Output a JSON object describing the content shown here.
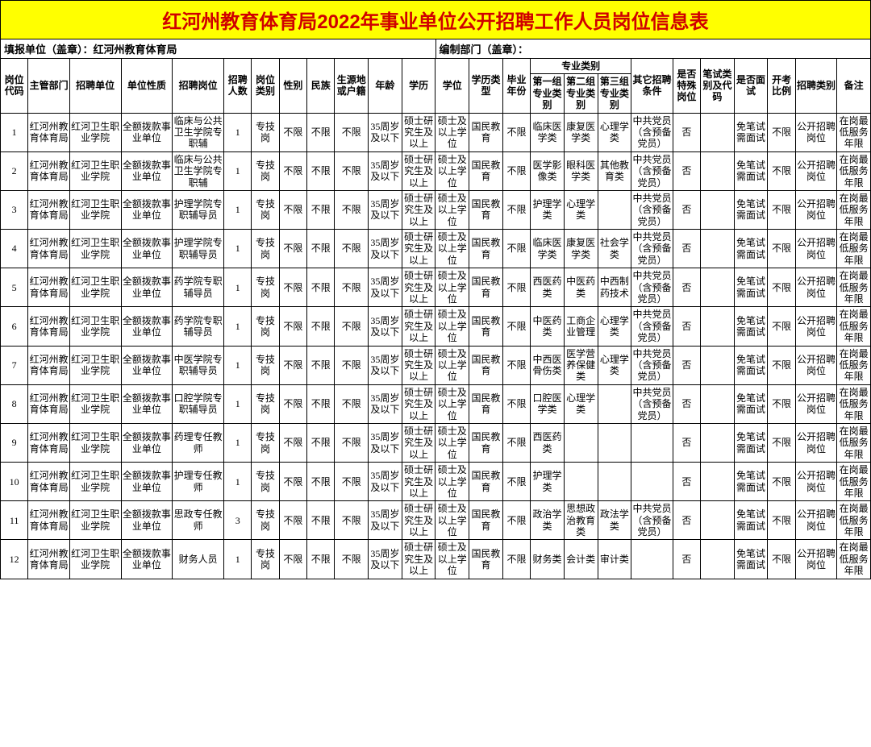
{
  "title": "红河州教育体育局2022年事业单位公开招聘工作人员岗位信息表",
  "meta_left": "填报单位（盖章）：红河州教育体育局",
  "meta_right": "编制部门（盖章）：",
  "header_group": "专业类别",
  "headers": {
    "c1": "岗位代码",
    "c2": "主管部门",
    "c3": "招聘单位",
    "c4": "单位性质",
    "c5": "招聘岗位",
    "c6": "招聘人数",
    "c7": "岗位类别",
    "c8": "性别",
    "c9": "民族",
    "c10": "生源地或户籍",
    "c11": "年龄",
    "c12": "学历",
    "c13": "学位",
    "c14": "学历类型",
    "c15": "毕业年份",
    "c16": "第一组专业类别",
    "c17": "第二组专业类别",
    "c18": "第三组专业类别",
    "c19": "其它招聘条件",
    "c20": "是否特殊岗位",
    "c21": "笔试类别及代码",
    "c22": "是否面试",
    "c23": "开考比例",
    "c24": "招聘类别",
    "c25": "备注"
  },
  "rows": [
    {
      "c1": "1",
      "c2": "红河州教育体育局",
      "c3": "红河卫生职业学院",
      "c4": "全额拨款事业单位",
      "c5": "临床与公共卫生学院专职辅",
      "c6": "1",
      "c7": "专技岗",
      "c8": "不限",
      "c9": "不限",
      "c10": "不限",
      "c11": "35周岁及以下",
      "c12": "硕士研究生及以上",
      "c13": "硕士及以上学位",
      "c14": "国民教育",
      "c15": "不限",
      "c16": "临床医学类",
      "c17": "康复医学类",
      "c18": "心理学类",
      "c19": "中共党员（含预备党员）",
      "c20": "否",
      "c21": "",
      "c22": "免笔试需面试",
      "c23": "不限",
      "c24": "公开招聘岗位",
      "c25": "在岗最低服务年限"
    },
    {
      "c1": "2",
      "c2": "红河州教育体育局",
      "c3": "红河卫生职业学院",
      "c4": "全额拨款事业单位",
      "c5": "临床与公共卫生学院专职辅",
      "c6": "1",
      "c7": "专技岗",
      "c8": "不限",
      "c9": "不限",
      "c10": "不限",
      "c11": "35周岁及以下",
      "c12": "硕士研究生及以上",
      "c13": "硕士及以上学位",
      "c14": "国民教育",
      "c15": "不限",
      "c16": "医学影像类",
      "c17": "眼科医学类",
      "c18": "其他教育类",
      "c19": "中共党员（含预备党员）",
      "c20": "否",
      "c21": "",
      "c22": "免笔试需面试",
      "c23": "不限",
      "c24": "公开招聘岗位",
      "c25": "在岗最低服务年限"
    },
    {
      "c1": "3",
      "c2": "红河州教育体育局",
      "c3": "红河卫生职业学院",
      "c4": "全额拨款事业单位",
      "c5": "护理学院专职辅导员",
      "c6": "1",
      "c7": "专技岗",
      "c8": "不限",
      "c9": "不限",
      "c10": "不限",
      "c11": "35周岁及以下",
      "c12": "硕士研究生及以上",
      "c13": "硕士及以上学位",
      "c14": "国民教育",
      "c15": "不限",
      "c16": "护理学类",
      "c17": "心理学类",
      "c18": "",
      "c19": "中共党员（含预备党员）",
      "c20": "否",
      "c21": "",
      "c22": "免笔试需面试",
      "c23": "不限",
      "c24": "公开招聘岗位",
      "c25": "在岗最低服务年限"
    },
    {
      "c1": "4",
      "c2": "红河州教育体育局",
      "c3": "红河卫生职业学院",
      "c4": "全额拨款事业单位",
      "c5": "护理学院专职辅导员",
      "c6": "1",
      "c7": "专技岗",
      "c8": "不限",
      "c9": "不限",
      "c10": "不限",
      "c11": "35周岁及以下",
      "c12": "硕士研究生及以上",
      "c13": "硕士及以上学位",
      "c14": "国民教育",
      "c15": "不限",
      "c16": "临床医学类",
      "c17": "康复医学类",
      "c18": "社会学类",
      "c19": "中共党员（含预备党员）",
      "c20": "否",
      "c21": "",
      "c22": "免笔试需面试",
      "c23": "不限",
      "c24": "公开招聘岗位",
      "c25": "在岗最低服务年限"
    },
    {
      "c1": "5",
      "c2": "红河州教育体育局",
      "c3": "红河卫生职业学院",
      "c4": "全额拨款事业单位",
      "c5": "药学院专职辅导员",
      "c6": "1",
      "c7": "专技岗",
      "c8": "不限",
      "c9": "不限",
      "c10": "不限",
      "c11": "35周岁及以下",
      "c12": "硕士研究生及以上",
      "c13": "硕士及以上学位",
      "c14": "国民教育",
      "c15": "不限",
      "c16": "西医药类",
      "c17": "中医药类",
      "c18": "中西制药技术",
      "c19": "中共党员（含预备党员）",
      "c20": "否",
      "c21": "",
      "c22": "免笔试需面试",
      "c23": "不限",
      "c24": "公开招聘岗位",
      "c25": "在岗最低服务年限"
    },
    {
      "c1": "6",
      "c2": "红河州教育体育局",
      "c3": "红河卫生职业学院",
      "c4": "全额拨款事业单位",
      "c5": "药学院专职辅导员",
      "c6": "1",
      "c7": "专技岗",
      "c8": "不限",
      "c9": "不限",
      "c10": "不限",
      "c11": "35周岁及以下",
      "c12": "硕士研究生及以上",
      "c13": "硕士及以上学位",
      "c14": "国民教育",
      "c15": "不限",
      "c16": "中医药类",
      "c17": "工商企业管理",
      "c18": "心理学类",
      "c19": "中共党员（含预备党员）",
      "c20": "否",
      "c21": "",
      "c22": "免笔试需面试",
      "c23": "不限",
      "c24": "公开招聘岗位",
      "c25": "在岗最低服务年限"
    },
    {
      "c1": "7",
      "c2": "红河州教育体育局",
      "c3": "红河卫生职业学院",
      "c4": "全额拨款事业单位",
      "c5": "中医学院专职辅导员",
      "c6": "1",
      "c7": "专技岗",
      "c8": "不限",
      "c9": "不限",
      "c10": "不限",
      "c11": "35周岁及以下",
      "c12": "硕士研究生及以上",
      "c13": "硕士及以上学位",
      "c14": "国民教育",
      "c15": "不限",
      "c16": "中西医骨伤类",
      "c17": "医学营养保健类",
      "c18": "心理学类",
      "c19": "中共党员（含预备党员）",
      "c20": "否",
      "c21": "",
      "c22": "免笔试需面试",
      "c23": "不限",
      "c24": "公开招聘岗位",
      "c25": "在岗最低服务年限"
    },
    {
      "c1": "8",
      "c2": "红河州教育体育局",
      "c3": "红河卫生职业学院",
      "c4": "全额拨款事业单位",
      "c5": "口腔学院专职辅导员",
      "c6": "1",
      "c7": "专技岗",
      "c8": "不限",
      "c9": "不限",
      "c10": "不限",
      "c11": "35周岁及以下",
      "c12": "硕士研究生及以上",
      "c13": "硕士及以上学位",
      "c14": "国民教育",
      "c15": "不限",
      "c16": "口腔医学类",
      "c17": "心理学类",
      "c18": "",
      "c19": "中共党员（含预备党员）",
      "c20": "否",
      "c21": "",
      "c22": "免笔试需面试",
      "c23": "不限",
      "c24": "公开招聘岗位",
      "c25": "在岗最低服务年限"
    },
    {
      "c1": "9",
      "c2": "红河州教育体育局",
      "c3": "红河卫生职业学院",
      "c4": "全额拨款事业单位",
      "c5": "药理专任教师",
      "c6": "1",
      "c7": "专技岗",
      "c8": "不限",
      "c9": "不限",
      "c10": "不限",
      "c11": "35周岁及以下",
      "c12": "硕士研究生及以上",
      "c13": "硕士及以上学位",
      "c14": "国民教育",
      "c15": "不限",
      "c16": "西医药类",
      "c17": "",
      "c18": "",
      "c19": "",
      "c20": "否",
      "c21": "",
      "c22": "免笔试需面试",
      "c23": "不限",
      "c24": "公开招聘岗位",
      "c25": "在岗最低服务年限"
    },
    {
      "c1": "10",
      "c2": "红河州教育体育局",
      "c3": "红河卫生职业学院",
      "c4": "全额拨款事业单位",
      "c5": "护理专任教师",
      "c6": "1",
      "c7": "专技岗",
      "c8": "不限",
      "c9": "不限",
      "c10": "不限",
      "c11": "35周岁及以下",
      "c12": "硕士研究生及以上",
      "c13": "硕士及以上学位",
      "c14": "国民教育",
      "c15": "不限",
      "c16": "护理学类",
      "c17": "",
      "c18": "",
      "c19": "",
      "c20": "否",
      "c21": "",
      "c22": "免笔试需面试",
      "c23": "不限",
      "c24": "公开招聘岗位",
      "c25": "在岗最低服务年限"
    },
    {
      "c1": "11",
      "c2": "红河州教育体育局",
      "c3": "红河卫生职业学院",
      "c4": "全额拨款事业单位",
      "c5": "思政专任教师",
      "c6": "3",
      "c7": "专技岗",
      "c8": "不限",
      "c9": "不限",
      "c10": "不限",
      "c11": "35周岁及以下",
      "c12": "硕士研究生及以上",
      "c13": "硕士及以上学位",
      "c14": "国民教育",
      "c15": "不限",
      "c16": "政治学类",
      "c17": "思想政治教育类",
      "c18": "政法学类",
      "c19": "中共党员（含预备党员）",
      "c20": "否",
      "c21": "",
      "c22": "免笔试需面试",
      "c23": "不限",
      "c24": "公开招聘岗位",
      "c25": "在岗最低服务年限"
    },
    {
      "c1": "12",
      "c2": "红河州教育体育局",
      "c3": "红河卫生职业学院",
      "c4": "全额拨款事业单位",
      "c5": "财务人员",
      "c6": "1",
      "c7": "专技岗",
      "c8": "不限",
      "c9": "不限",
      "c10": "不限",
      "c11": "35周岁及以下",
      "c12": "硕士研究生及以上",
      "c13": "硕士及以上学位",
      "c14": "国民教育",
      "c15": "不限",
      "c16": "财务类",
      "c17": "会计类",
      "c18": "审计类",
      "c19": "",
      "c20": "否",
      "c21": "",
      "c22": "免笔试需面试",
      "c23": "不限",
      "c24": "公开招聘岗位",
      "c25": "在岗最低服务年限"
    }
  ],
  "col_widths": [
    "28",
    "42",
    "52",
    "52",
    "52",
    "28",
    "28",
    "28",
    "28",
    "34",
    "34",
    "34",
    "34",
    "34",
    "28",
    "34",
    "34",
    "34",
    "42",
    "28",
    "34",
    "34",
    "28",
    "42",
    "34"
  ]
}
